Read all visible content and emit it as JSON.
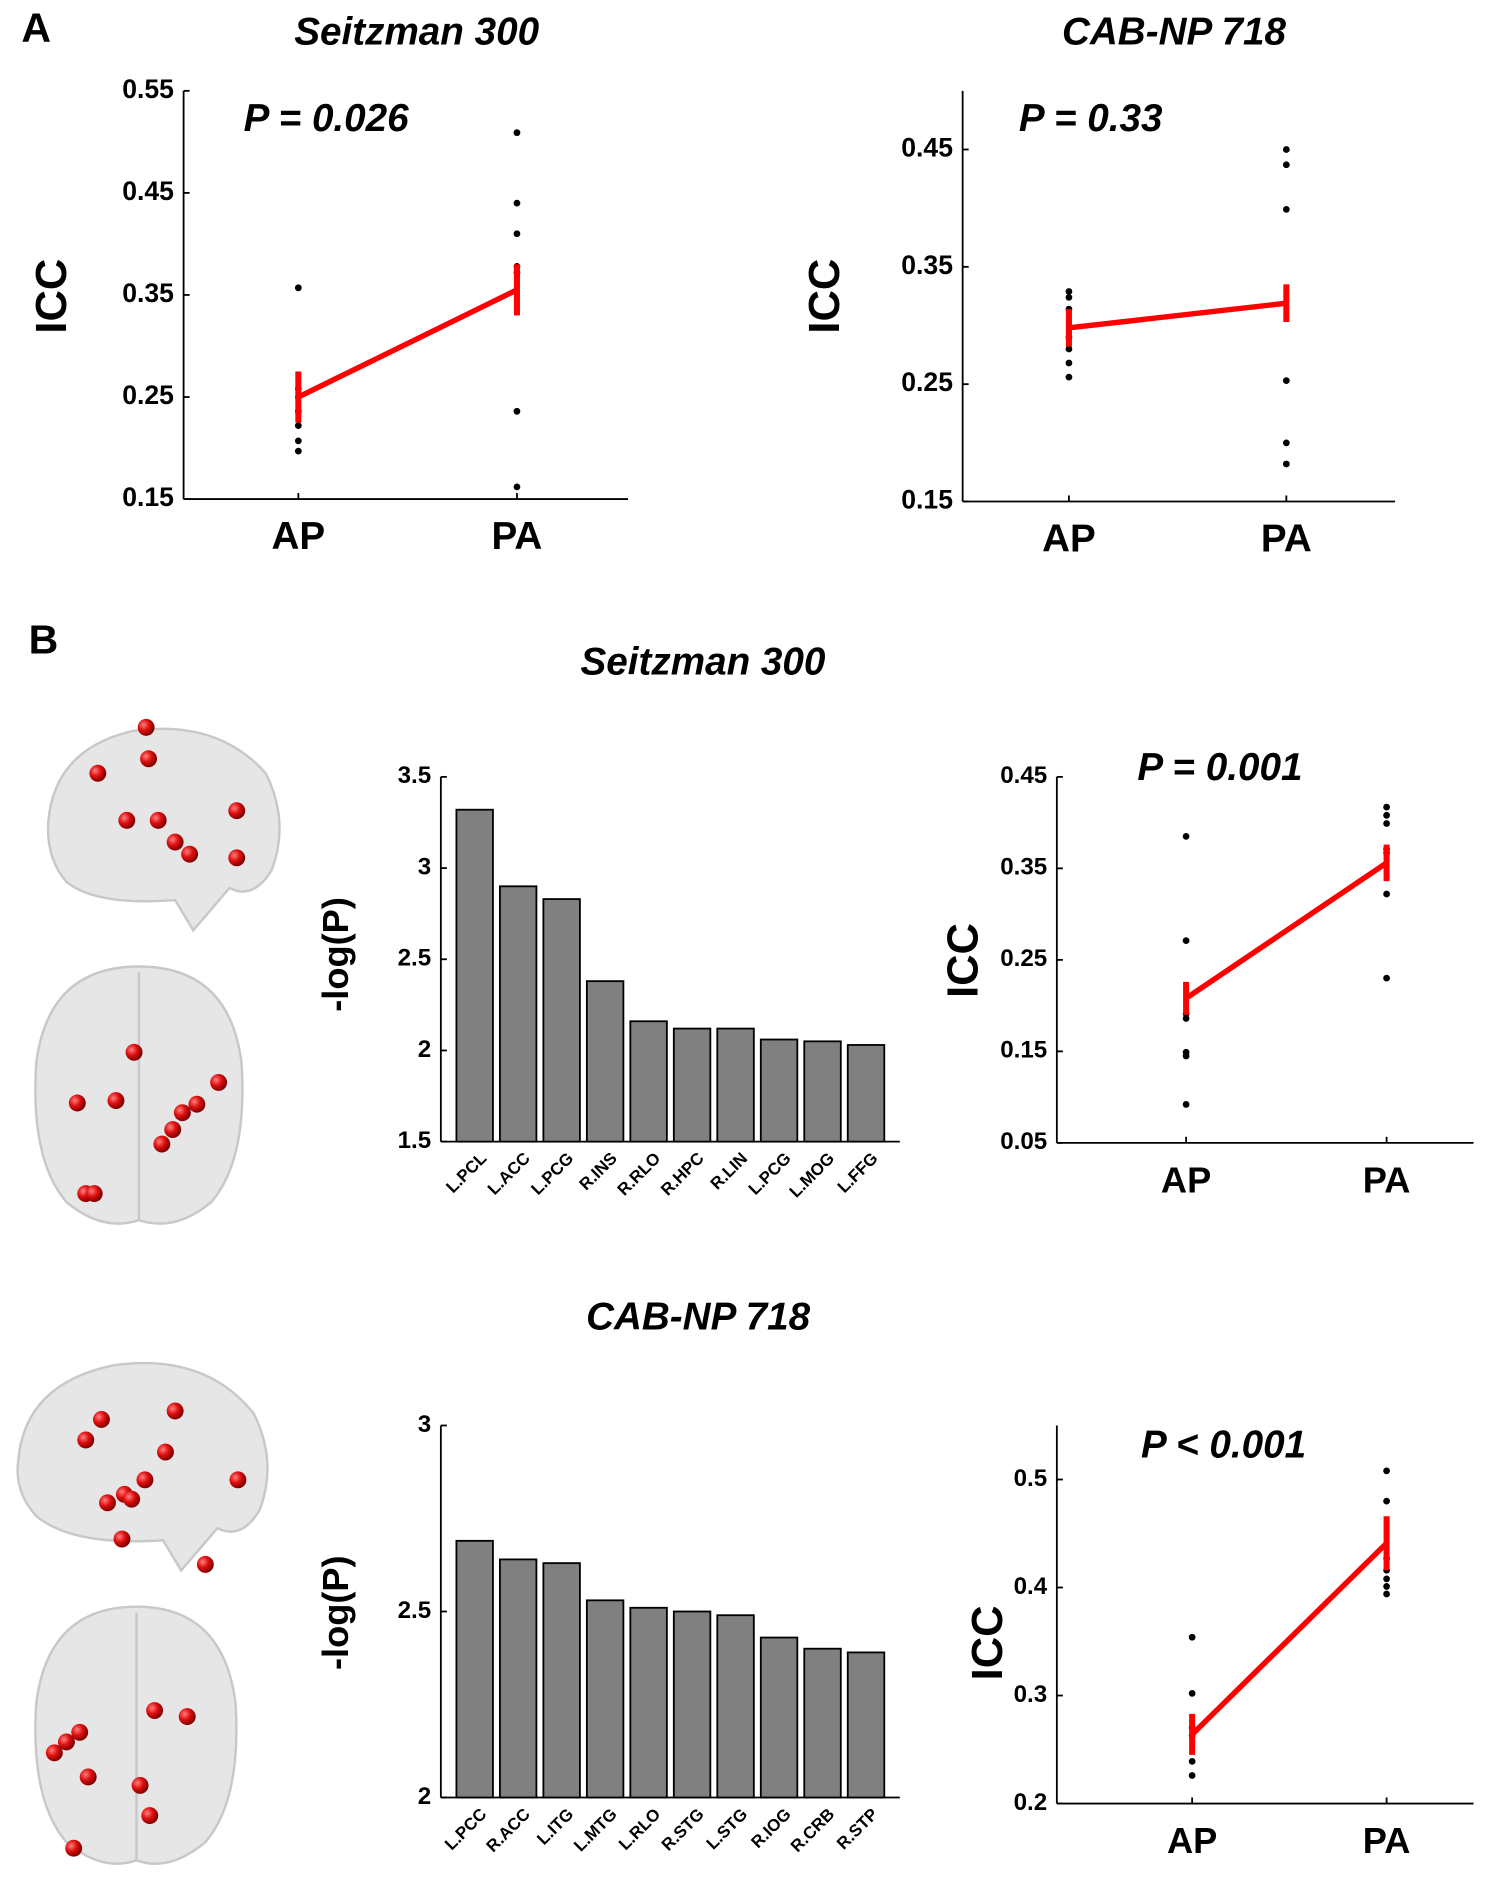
{
  "panel_labels": [
    "A",
    "B"
  ],
  "section_titles": [
    "Seitzman 300",
    "CAB-NP 718"
  ],
  "chart_data": [
    {
      "type": "dot",
      "title": "Seitzman 300",
      "annotation": "P = 0.026",
      "ylabel": "ICC",
      "categories": [
        "AP",
        "PA"
      ],
      "points": [
        [
          0.357,
          0.258,
          0.25,
          0.236,
          0.222,
          0.207,
          0.197
        ],
        [
          0.509,
          0.44,
          0.41,
          0.378,
          0.372,
          0.236,
          0.162
        ]
      ],
      "mean": [
        0.25,
        0.355
      ],
      "error": [
        0.025,
        0.025
      ],
      "color": "#ff0000",
      "point_color": "#000000",
      "ylim": [
        0.15,
        0.55
      ],
      "yticks": [
        0.15,
        0.25,
        0.35,
        0.45,
        0.55
      ]
    },
    {
      "type": "dot",
      "title": "CAB-NP 718",
      "annotation": "P = 0.33",
      "ylabel": "ICC",
      "categories": [
        "AP",
        "PA"
      ],
      "points": [
        [
          0.329,
          0.324,
          0.314,
          0.29,
          0.28,
          0.268,
          0.256
        ],
        [
          0.45,
          0.437,
          0.399,
          0.253,
          0.2,
          0.182
        ]
      ],
      "mean": [
        0.298,
        0.319
      ],
      "error": [
        0.016,
        0.016
      ],
      "color": "#ff0000",
      "point_color": "#000000",
      "ylim": [
        0.15,
        0.5
      ],
      "yticks": [
        0.15,
        0.25,
        0.35,
        0.45
      ]
    },
    {
      "type": "bar",
      "ylabel": "-log(P)",
      "categories": [
        "L.PCL",
        "L.ACC",
        "L.PCG",
        "R.INS",
        "R.RLO",
        "R.HPC",
        "R.LIN",
        "L.PCG",
        "L.MOG",
        "L.FFG"
      ],
      "values": [
        3.32,
        2.9,
        2.83,
        2.38,
        2.16,
        2.12,
        2.12,
        2.06,
        2.05,
        2.03
      ],
      "color": "#808080",
      "ylim": [
        1.5,
        3.5
      ],
      "yticks": [
        1.5,
        2,
        2.5,
        3,
        3.5
      ]
    },
    {
      "type": "dot",
      "annotation": "P = 0.001",
      "ylabel": "ICC",
      "categories": [
        "AP",
        "PA"
      ],
      "points": [
        [
          0.385,
          0.271,
          0.191,
          0.186,
          0.149,
          0.145,
          0.092
        ],
        [
          0.417,
          0.408,
          0.399,
          0.371,
          0.367,
          0.322,
          0.23
        ]
      ],
      "mean": [
        0.208,
        0.356
      ],
      "error": [
        0.018,
        0.02
      ],
      "color": "#ff0000",
      "point_color": "#000000",
      "ylim": [
        0.05,
        0.45
      ],
      "yticks": [
        0.05,
        0.15,
        0.25,
        0.35,
        0.45
      ]
    },
    {
      "type": "bar",
      "ylabel": "-log(P)",
      "categories": [
        "L.PCC",
        "R.ACC",
        "L.ITG",
        "L.MTG",
        "L.RLO",
        "R.STG",
        "L.STG",
        "R.IOG",
        "R.CRB",
        "R.STP"
      ],
      "values": [
        2.69,
        2.64,
        2.63,
        2.53,
        2.51,
        2.5,
        2.49,
        2.43,
        2.4,
        2.39
      ],
      "color": "#808080",
      "ylim": [
        2,
        3
      ],
      "yticks": [
        2,
        2.5,
        3
      ]
    },
    {
      "type": "dot",
      "annotation": "P < 0.001",
      "ylabel": "ICC",
      "categories": [
        "AP",
        "PA"
      ],
      "points": [
        [
          0.354,
          0.302,
          0.27,
          0.263,
          0.239,
          0.226
        ],
        [
          0.508,
          0.48,
          0.427,
          0.416,
          0.408,
          0.401,
          0.394
        ]
      ],
      "mean": [
        0.264,
        0.441
      ],
      "error": [
        0.019,
        0.025
      ],
      "color": "#ff0000",
      "point_color": "#000000",
      "ylim": [
        0.2,
        0.55
      ],
      "yticks": [
        0.2,
        0.3,
        0.4,
        0.5
      ]
    }
  ]
}
